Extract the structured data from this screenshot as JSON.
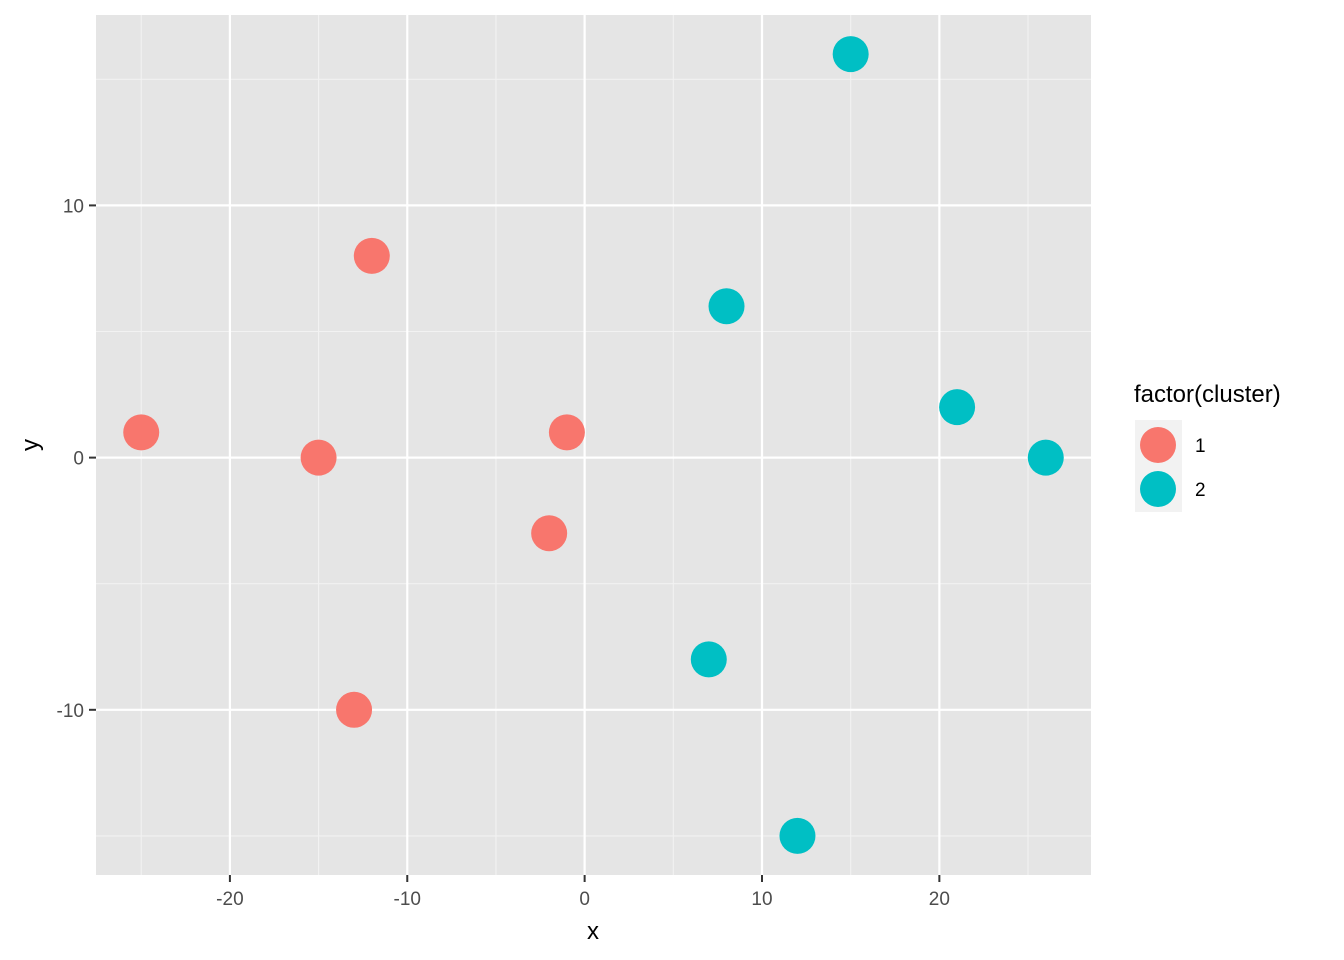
{
  "chart_data": {
    "type": "scatter",
    "title": "",
    "xlabel": "x",
    "ylabel": "y",
    "xlim": [
      -27.55,
      28.55
    ],
    "ylim": [
      -16.55,
      17.55
    ],
    "x_ticks": [
      -20,
      -10,
      0,
      10,
      20
    ],
    "x_tick_labels": [
      "-20",
      "-10",
      "0",
      "10",
      "20"
    ],
    "y_ticks": [
      -10,
      0,
      10
    ],
    "y_tick_labels": [
      "-10",
      "0",
      "10"
    ],
    "grid": true,
    "legend": {
      "title": "factor(cluster)",
      "position": "right",
      "entries": [
        {
          "label": "1",
          "color": "#F8766D"
        },
        {
          "label": "2",
          "color": "#00BFC4"
        }
      ]
    },
    "series": [
      {
        "name": "1",
        "color": "#F8766D",
        "points": [
          {
            "x": -25,
            "y": 1
          },
          {
            "x": -15,
            "y": 0
          },
          {
            "x": -12,
            "y": 8
          },
          {
            "x": -13,
            "y": -10
          },
          {
            "x": -1,
            "y": 1
          },
          {
            "x": -2,
            "y": -3
          }
        ]
      },
      {
        "name": "2",
        "color": "#00BFC4",
        "points": [
          {
            "x": 15,
            "y": 16
          },
          {
            "x": 8,
            "y": 6
          },
          {
            "x": 21,
            "y": 2
          },
          {
            "x": 26,
            "y": 0
          },
          {
            "x": 7,
            "y": -8
          },
          {
            "x": 12,
            "y": -15
          }
        ]
      }
    ]
  }
}
